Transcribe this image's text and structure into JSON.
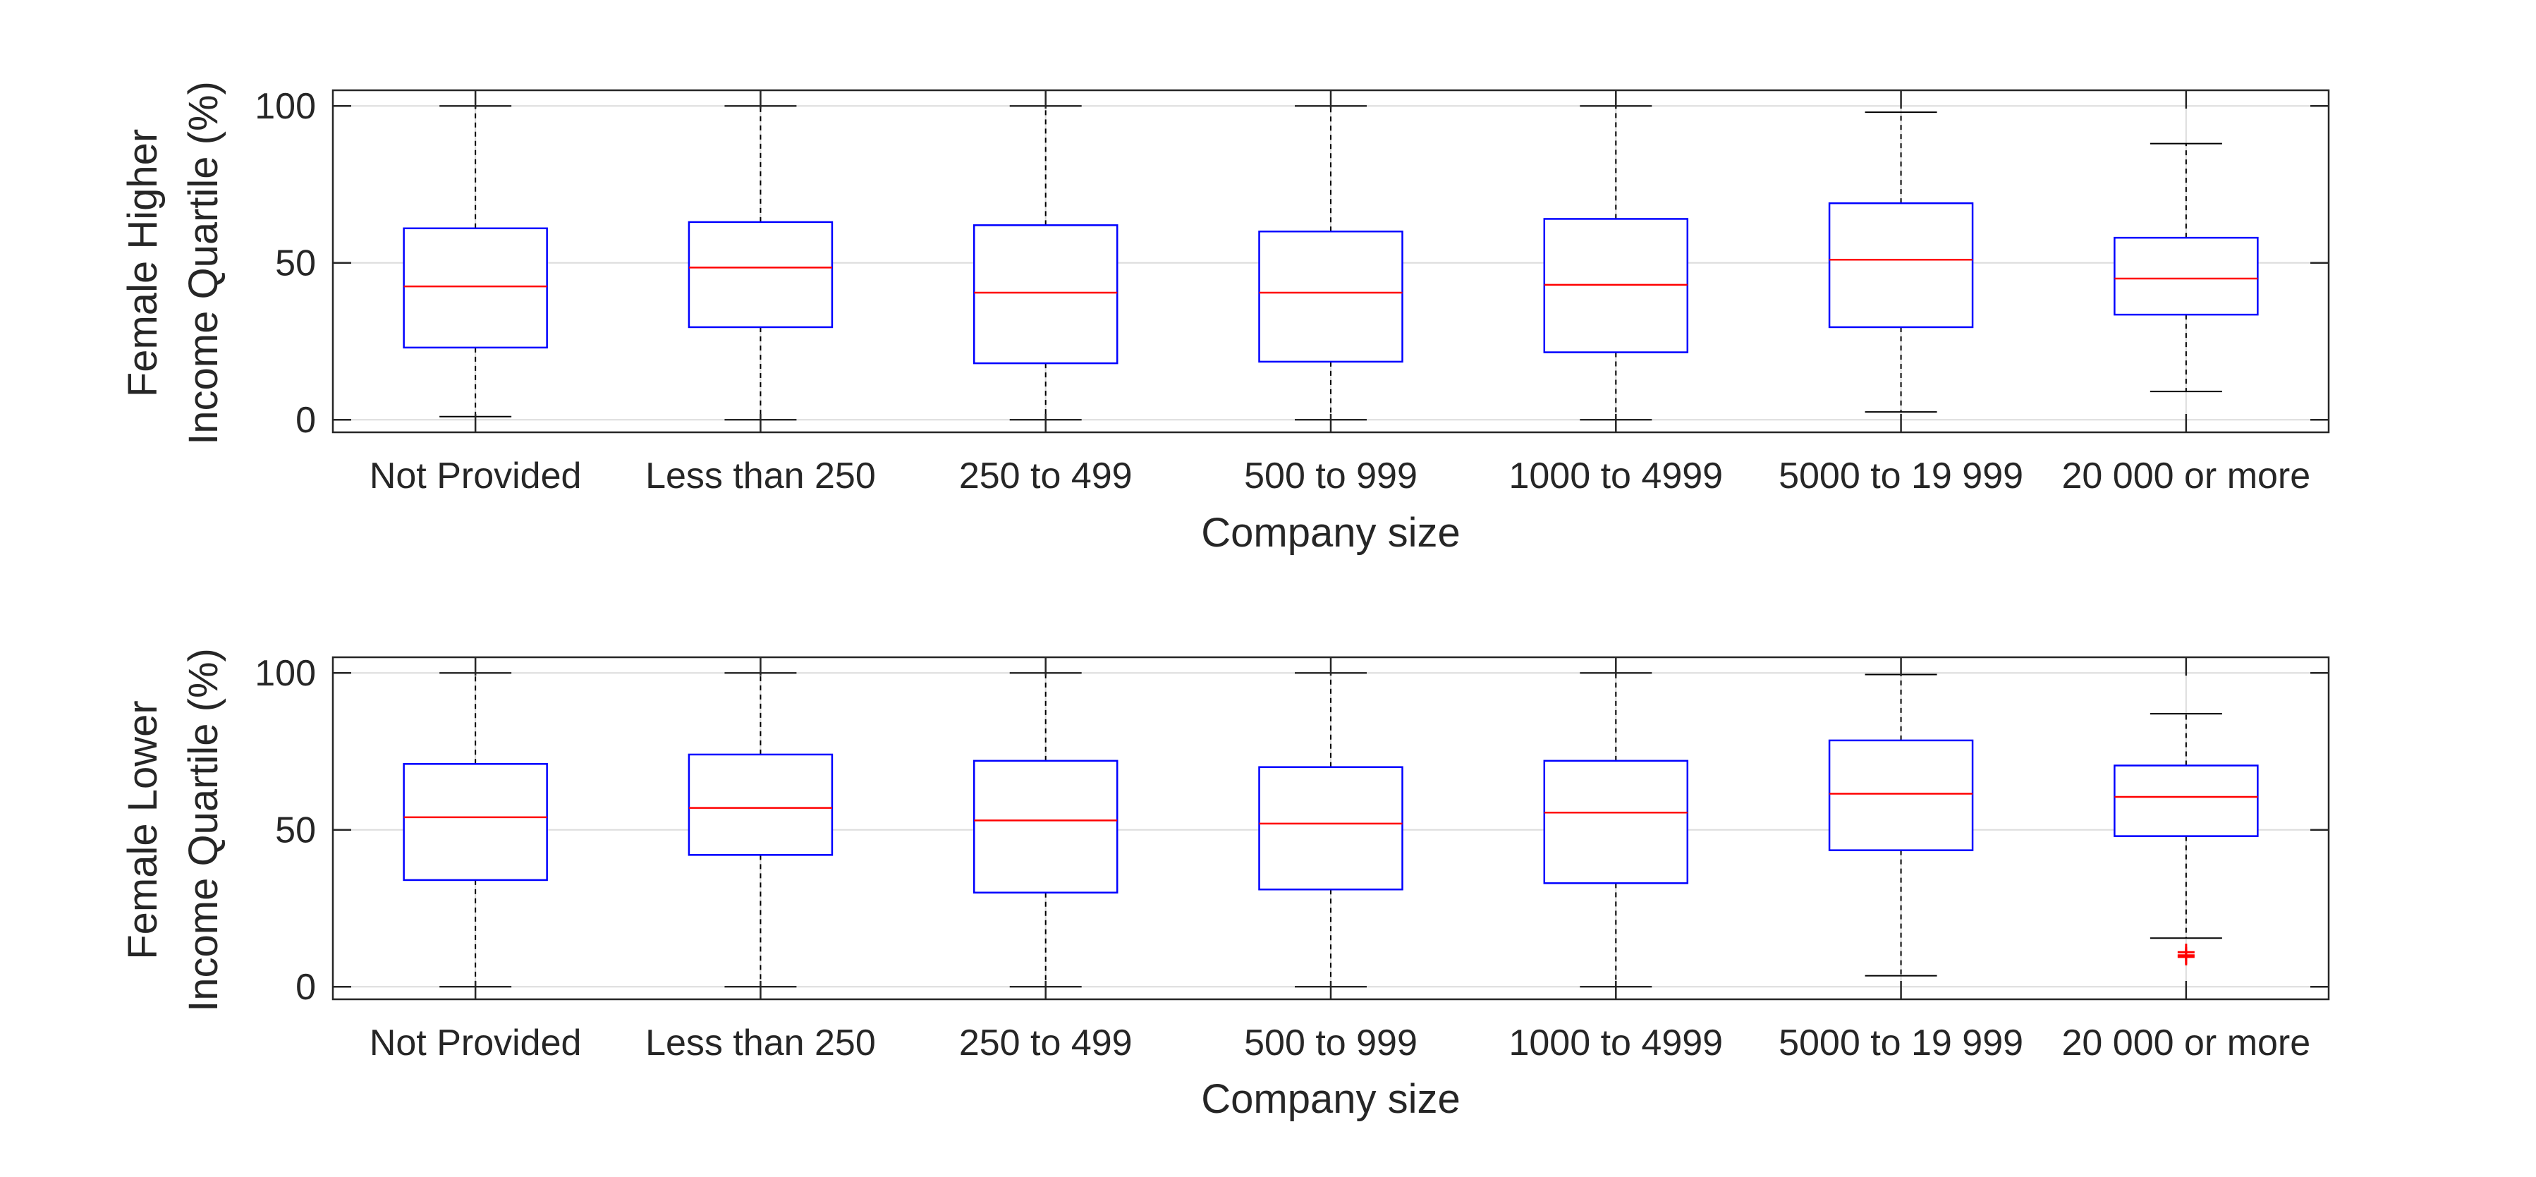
{
  "chart_data": [
    {
      "type": "box",
      "xlabel": "Company size",
      "ylabel": [
        "Female Higher",
        "Income Quartile (%)"
      ],
      "ylim": [
        -4,
        105
      ],
      "yticks": [
        0,
        50,
        100
      ],
      "grid": true,
      "categories": [
        "Not Provided",
        "Less than 250",
        "250 to 499",
        "500 to 999",
        "1000 to 4999",
        "5000 to 19 999",
        "20 000 or more"
      ],
      "boxes": [
        {
          "whisker_low": 1,
          "q1": 23,
          "median": 42.5,
          "q3": 61,
          "whisker_high": 100,
          "outliers": []
        },
        {
          "whisker_low": 0,
          "q1": 29.5,
          "median": 48.5,
          "q3": 63,
          "whisker_high": 100,
          "outliers": []
        },
        {
          "whisker_low": 0,
          "q1": 18,
          "median": 40.5,
          "q3": 62,
          "whisker_high": 100,
          "outliers": []
        },
        {
          "whisker_low": 0,
          "q1": 18.5,
          "median": 40.5,
          "q3": 60,
          "whisker_high": 100,
          "outliers": []
        },
        {
          "whisker_low": 0,
          "q1": 21.5,
          "median": 43,
          "q3": 64,
          "whisker_high": 100,
          "outliers": []
        },
        {
          "whisker_low": 2.5,
          "q1": 29.5,
          "median": 51,
          "q3": 69,
          "whisker_high": 98,
          "outliers": []
        },
        {
          "whisker_low": 9,
          "q1": 33.5,
          "median": 45,
          "q3": 58,
          "whisker_high": 88,
          "outliers": []
        }
      ]
    },
    {
      "type": "box",
      "xlabel": "Company size",
      "ylabel": [
        "Female Lower",
        "Income Quartile (%)"
      ],
      "ylim": [
        -4,
        105
      ],
      "yticks": [
        0,
        50,
        100
      ],
      "grid": true,
      "categories": [
        "Not Provided",
        "Less than 250",
        "250 to 499",
        "500 to 999",
        "1000 to 4999",
        "5000 to 19 999",
        "20 000 or more"
      ],
      "boxes": [
        {
          "whisker_low": 0,
          "q1": 34,
          "median": 54,
          "q3": 71,
          "whisker_high": 100,
          "outliers": []
        },
        {
          "whisker_low": 0,
          "q1": 42,
          "median": 57,
          "q3": 74,
          "whisker_high": 100,
          "outliers": []
        },
        {
          "whisker_low": 0,
          "q1": 30,
          "median": 53,
          "q3": 72,
          "whisker_high": 100,
          "outliers": []
        },
        {
          "whisker_low": 0,
          "q1": 31,
          "median": 52,
          "q3": 70,
          "whisker_high": 100,
          "outliers": []
        },
        {
          "whisker_low": 0,
          "q1": 33,
          "median": 55.5,
          "q3": 72,
          "whisker_high": 100,
          "outliers": []
        },
        {
          "whisker_low": 3.5,
          "q1": 43.5,
          "median": 61.5,
          "q3": 78.5,
          "whisker_high": 99.5,
          "outliers": []
        },
        {
          "whisker_low": 15.5,
          "q1": 48,
          "median": 60.5,
          "q3": 70.5,
          "whisker_high": 87,
          "outliers": [
            11,
            10,
            9.5
          ]
        }
      ]
    }
  ],
  "colors": {
    "box": "#0000ff",
    "median": "#ff0000",
    "whisker": "#000000",
    "outlier": "#ff0000",
    "axes": "#262626",
    "grid": "#dcdcdc"
  }
}
